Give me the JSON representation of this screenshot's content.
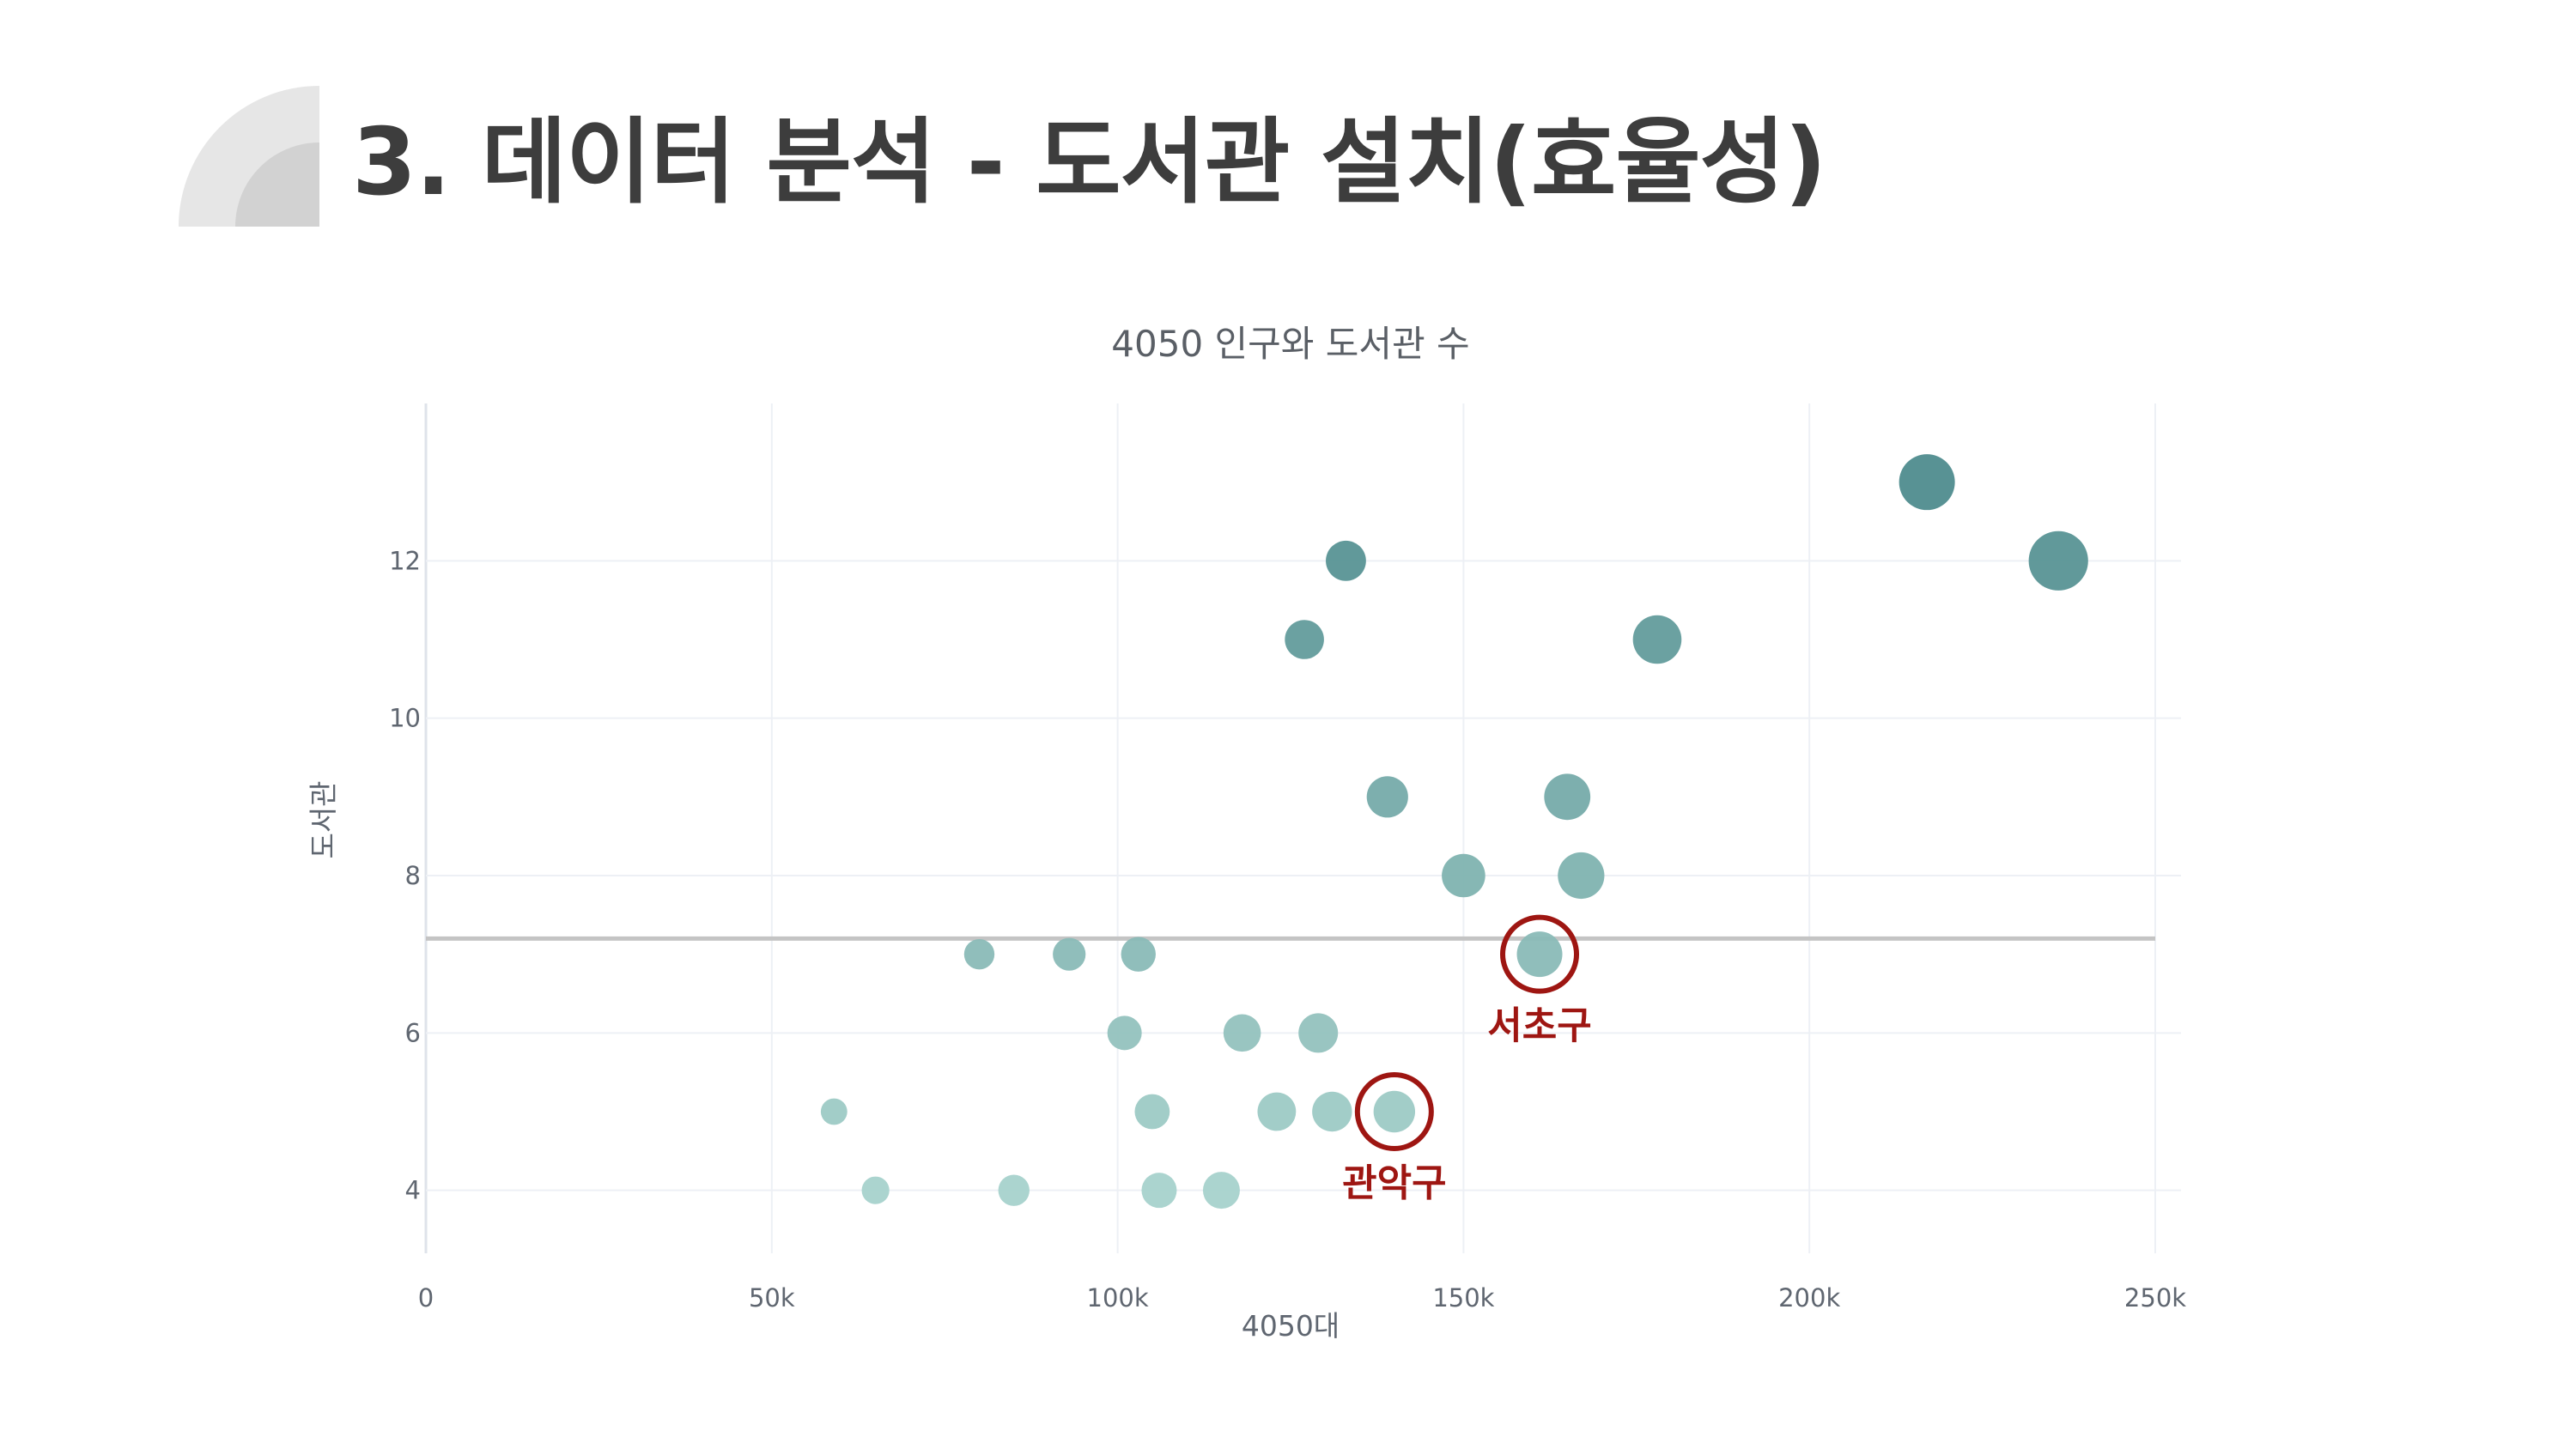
{
  "slide": {
    "title": "3. 데이터 분석 - 도서관 설치(효율성)"
  },
  "chart_data": {
    "type": "scatter",
    "title": "4050 인구와 도서관 수",
    "xlabel": "4050대",
    "ylabel": "도서관",
    "xlim": [
      0,
      250000
    ],
    "ylim": [
      3.2,
      14
    ],
    "x_ticks": [
      0,
      50000,
      100000,
      150000,
      200000,
      250000
    ],
    "x_tick_labels": [
      "0",
      "50k",
      "100k",
      "150k",
      "200k",
      "250k"
    ],
    "y_ticks": [
      4,
      6,
      8,
      10,
      12
    ],
    "y_tick_labels": [
      "4",
      "6",
      "8",
      "10",
      "12"
    ],
    "grid": true,
    "reference_line_y": 7.2,
    "colors": {
      "low": "#a7d2cc",
      "high": "#4f8c8e",
      "line": "#c4c4c4",
      "annotation": "#9e1612",
      "grid": "#edf0f5"
    },
    "points": [
      {
        "x": 59000,
        "y": 5
      },
      {
        "x": 65000,
        "y": 4
      },
      {
        "x": 80000,
        "y": 7
      },
      {
        "x": 85000,
        "y": 4
      },
      {
        "x": 93000,
        "y": 7
      },
      {
        "x": 101000,
        "y": 6
      },
      {
        "x": 103000,
        "y": 7
      },
      {
        "x": 105000,
        "y": 5
      },
      {
        "x": 106000,
        "y": 4
      },
      {
        "x": 115000,
        "y": 4
      },
      {
        "x": 118000,
        "y": 6
      },
      {
        "x": 123000,
        "y": 5
      },
      {
        "x": 127000,
        "y": 11
      },
      {
        "x": 129000,
        "y": 6
      },
      {
        "x": 131000,
        "y": 5
      },
      {
        "x": 133000,
        "y": 12
      },
      {
        "x": 139000,
        "y": 9
      },
      {
        "x": 140000,
        "y": 5
      },
      {
        "x": 150000,
        "y": 8
      },
      {
        "x": 161000,
        "y": 7
      },
      {
        "x": 165000,
        "y": 9
      },
      {
        "x": 167000,
        "y": 8
      },
      {
        "x": 178000,
        "y": 11
      },
      {
        "x": 217000,
        "y": 13
      },
      {
        "x": 236000,
        "y": 12
      }
    ],
    "annotations": [
      {
        "label": "서초구",
        "x": 161000,
        "y": 7
      },
      {
        "label": "관악구",
        "x": 140000,
        "y": 5
      }
    ]
  }
}
